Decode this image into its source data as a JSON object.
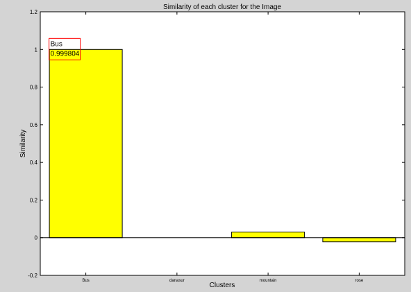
{
  "chart_data": {
    "type": "bar",
    "title": "Similarity of each cluster for the Image",
    "xlabel": "Clusters",
    "ylabel": "Similarity",
    "categories": [
      "Bus",
      "danasur",
      "mountain",
      "rose"
    ],
    "values": [
      0.999804,
      0.0,
      0.03,
      -0.022
    ],
    "ylim": [
      -0.2,
      1.2
    ],
    "yticks": [
      -0.2,
      0,
      0.2,
      0.4,
      0.6,
      0.8,
      1,
      1.2
    ],
    "ytick_labels": [
      "-0.2",
      "0",
      "0.2",
      "0.4",
      "0.6",
      "0.8",
      "1",
      "1.2"
    ],
    "grid": false,
    "bar_color": "#ffff00",
    "bar_edge_color": "#000000",
    "annotation": {
      "category": "Bus",
      "name": "Bus",
      "value": "0.999804",
      "border_color": "#ff0000"
    }
  }
}
